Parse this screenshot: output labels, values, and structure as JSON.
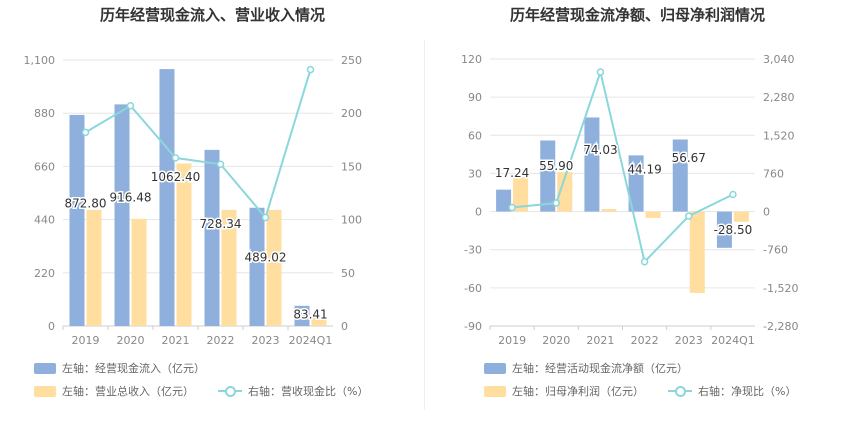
{
  "left": {
    "title": "历年经营现金流入、营业收入情况",
    "legend": {
      "bar1": "左轴：经营现金流入（亿元）",
      "bar2": "左轴：营业总收入（亿元）",
      "line": "右轴：营收现金比（%）"
    },
    "colors": {
      "bar1": "#8fb0dd",
      "bar2": "#ffdea0",
      "line": "#8ad7dc"
    }
  },
  "right": {
    "title": "历年经营现金流净额、归母净利润情况",
    "legend": {
      "bar1": "左轴：经营活动现金流净额（亿元）",
      "bar2": "左轴：归母净利润（亿元）",
      "line": "右轴：净现比（%）"
    },
    "colors": {
      "bar1": "#8fb0dd",
      "bar2": "#ffdea0",
      "line": "#8ad7dc"
    }
  },
  "chart_data": [
    {
      "type": "bar",
      "title": "历年经营现金流入、营业收入情况",
      "categories": [
        "2019",
        "2020",
        "2021",
        "2022",
        "2023",
        "2024Q1"
      ],
      "left_ticks": [
        "0",
        "220",
        "440",
        "660",
        "880",
        "1,100"
      ],
      "right_ticks": [
        "0",
        "50",
        "100",
        "150",
        "200",
        "250"
      ],
      "ylim_left": [
        0,
        1100
      ],
      "ylim_right": [
        0,
        250
      ],
      "grid": true,
      "series": [
        {
          "name": "左轴：经营现金流入（亿元）",
          "axis": "left",
          "type": "bar",
          "values": [
            872.8,
            916.48,
            1062.4,
            728.34,
            489.02,
            83.41
          ],
          "labels": [
            "872.80",
            "916.48",
            "1062.40",
            "728.34",
            "489.02",
            "83.41"
          ]
        },
        {
          "name": "左轴：营业总收入（亿元）",
          "axis": "left",
          "type": "bar",
          "values": [
            480,
            443,
            672,
            480,
            480,
            37
          ]
        },
        {
          "name": "右轴：营收现金比（%）",
          "axis": "right",
          "type": "line",
          "values": [
            182,
            207,
            158,
            152,
            102,
            241
          ]
        }
      ]
    },
    {
      "type": "bar",
      "title": "历年经营现金流净额、归母净利润情况",
      "categories": [
        "2019",
        "2020",
        "2021",
        "2022",
        "2023",
        "2024Q1"
      ],
      "left_ticks": [
        "-90",
        "-60",
        "-30",
        "0",
        "30",
        "60",
        "90",
        "120"
      ],
      "right_ticks": [
        "-2,280",
        "-1,520",
        "-760",
        "0",
        "760",
        "1,520",
        "2,280",
        "3,040"
      ],
      "ylim_left": [
        -90,
        120
      ],
      "ylim_right": [
        -2280,
        3040
      ],
      "grid": true,
      "series": [
        {
          "name": "左轴：经营活动现金流净额（亿元）",
          "axis": "left",
          "type": "bar",
          "values": [
            17.24,
            55.9,
            74.03,
            44.19,
            56.67,
            -28.5
          ],
          "labels": [
            "17.24",
            "55.90",
            "74.03",
            "44.19",
            "56.67",
            "-28.50"
          ]
        },
        {
          "name": "左轴：归母净利润（亿元）",
          "axis": "left",
          "type": "bar",
          "values": [
            27,
            31,
            2,
            -5,
            -64,
            -8
          ]
        },
        {
          "name": "右轴：净现比（%）",
          "axis": "right",
          "type": "line",
          "values": [
            80,
            170,
            2780,
            -1000,
            -90,
            340
          ]
        }
      ]
    }
  ]
}
